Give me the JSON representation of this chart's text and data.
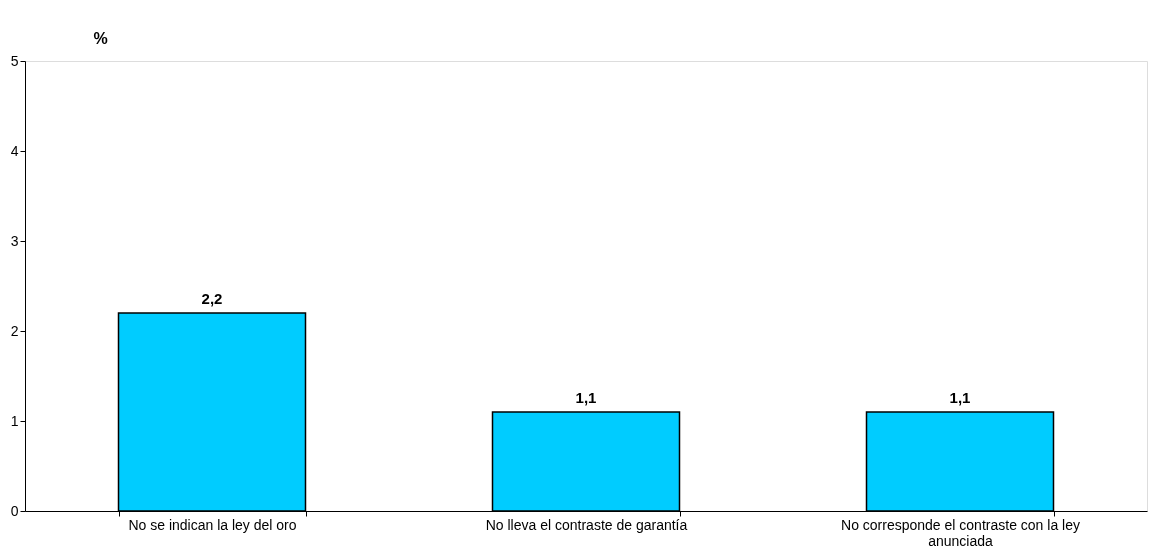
{
  "chart_data": {
    "type": "bar",
    "ylabel": "%",
    "categories": [
      "No se indican  la ley del oro",
      "No lleva el contraste de garantía",
      "No corresponde el contraste con la ley anunciada"
    ],
    "values": [
      2.2,
      1.1,
      1.1
    ],
    "value_labels": [
      "2,2",
      "1,1",
      "1,1"
    ],
    "color": "#00ccff",
    "ylim": [
      0,
      5
    ],
    "yticks": [
      0,
      1,
      2,
      3,
      4,
      5
    ],
    "grid": false
  }
}
